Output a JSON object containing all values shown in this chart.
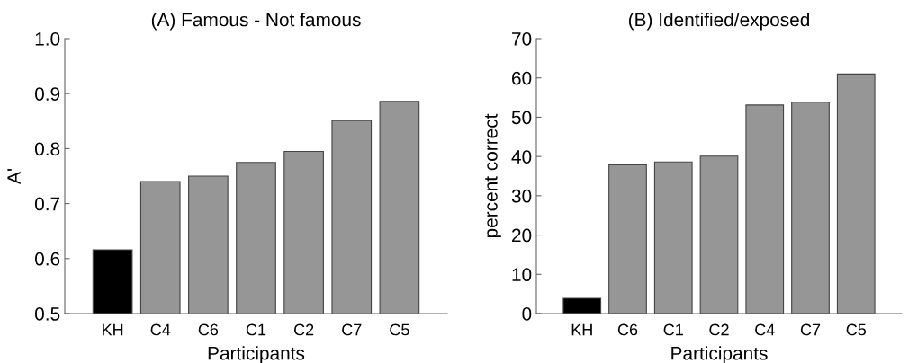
{
  "chart_data": [
    {
      "type": "bar",
      "title": "(A) Famous - Not famous",
      "xlabel": "Participants",
      "ylabel": "A'",
      "categories": [
        "KH",
        "C4",
        "C6",
        "C1",
        "C2",
        "C7",
        "C5"
      ],
      "values": [
        0.616,
        0.74,
        0.75,
        0.775,
        0.795,
        0.851,
        0.886
      ],
      "colors": [
        "#000000",
        "#969696",
        "#969696",
        "#969696",
        "#969696",
        "#969696",
        "#969696"
      ],
      "ylim": [
        0.5,
        1.0
      ],
      "yticks": [
        {
          "value": 0.5,
          "label": "0.5"
        },
        {
          "value": 0.6,
          "label": "0.6"
        },
        {
          "value": 0.7,
          "label": "0.7"
        },
        {
          "value": 0.8,
          "label": "0.8"
        },
        {
          "value": 0.9,
          "label": "0.9"
        },
        {
          "value": 1.0,
          "label": "1.0"
        }
      ]
    },
    {
      "type": "bar",
      "title": "(B) Identified/exposed",
      "xlabel": "Participants",
      "ylabel": "percent correct",
      "categories": [
        "KH",
        "C6",
        "C1",
        "C2",
        "C4",
        "C7",
        "C5"
      ],
      "values": [
        3.9,
        37.9,
        38.6,
        40.1,
        53.1,
        53.8,
        61.0
      ],
      "colors": [
        "#000000",
        "#969696",
        "#969696",
        "#969696",
        "#969696",
        "#969696",
        "#969696"
      ],
      "ylim": [
        0,
        70
      ],
      "yticks": [
        0,
        10,
        20,
        30,
        40,
        50,
        60,
        70
      ]
    }
  ]
}
